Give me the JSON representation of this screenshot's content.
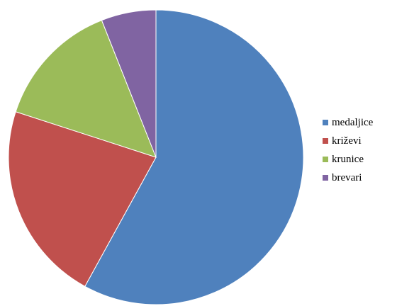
{
  "chart_data": {
    "type": "pie",
    "title": "",
    "categories": [
      "medaljice",
      "križevi",
      "krunice",
      "brevari"
    ],
    "values": [
      58,
      22,
      14,
      6
    ],
    "colors": [
      "#4F81BD",
      "#C0504D",
      "#9BBB59",
      "#8064A2"
    ],
    "start_angle_deg": 0,
    "direction": "clockwise",
    "legend_position": "right"
  }
}
